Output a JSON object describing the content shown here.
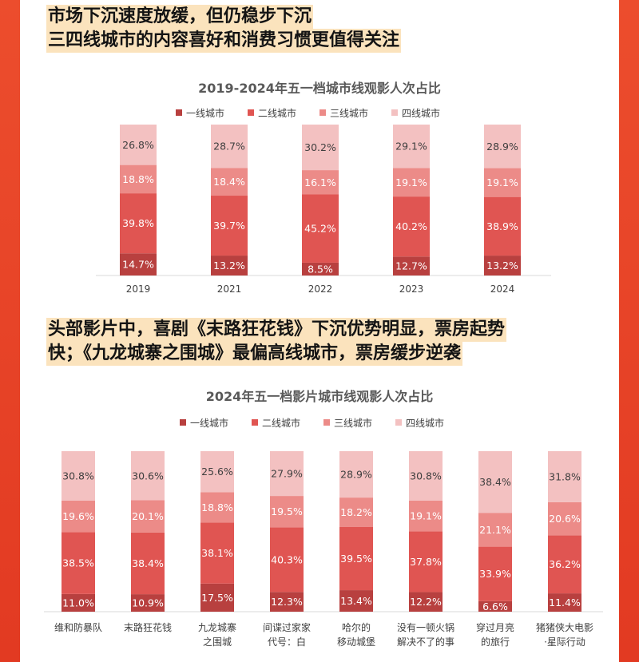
{
  "headline1": [
    "市场下沉速度放缓，但仍稳步下沉",
    "三四线城市的内容喜好和消费习惯更值得关注"
  ],
  "headline2": [
    "头部影片中，喜剧《末路狂花钱》下沉优势明显，票房起势",
    "快；《九龙城寨之围城》最偏高线城市，票房缓步逆袭"
  ],
  "colors": {
    "frame": "#e8432a",
    "highlight": "#fbe3bd",
    "tier1": "#b8403f",
    "tier2": "#e05552",
    "tier3": "#ec8b88",
    "tier4": "#f3c1c1"
  },
  "chart_data": [
    {
      "type": "bar",
      "stacked": true,
      "title": "2019-2024年五一档城市线观影人次占比",
      "legend_position": "top",
      "categories": [
        "2019",
        "2021",
        "2022",
        "2023",
        "2024"
      ],
      "category_labels": [
        [
          "2019"
        ],
        [
          "2021"
        ],
        [
          "2022"
        ],
        [
          "2023"
        ],
        [
          "2024"
        ]
      ],
      "series": [
        {
          "name": "一线城市",
          "values": [
            14.7,
            13.2,
            8.5,
            12.7,
            13.2
          ],
          "labels": [
            "14.7%",
            "13.2%",
            "8.5%",
            "12.7%",
            "13.2%"
          ]
        },
        {
          "name": "二线城市",
          "values": [
            39.8,
            39.7,
            45.2,
            40.2,
            38.9
          ],
          "labels": [
            "39.8%",
            "39.7%",
            "45.2%",
            "40.2%",
            "38.9%"
          ]
        },
        {
          "name": "三线城市",
          "values": [
            18.8,
            18.4,
            16.1,
            19.1,
            19.1
          ],
          "labels": [
            "18.8%",
            "18.4%",
            "16.1%",
            "19.1%",
            "19.1%"
          ]
        },
        {
          "name": "四线城市",
          "values": [
            26.8,
            28.7,
            30.2,
            29.1,
            28.9
          ],
          "labels": [
            "26.8%",
            "28.7%",
            "30.2%",
            "29.1%",
            "28.9%"
          ]
        }
      ]
    },
    {
      "type": "bar",
      "stacked": true,
      "title": "2024年五一档影片城市线观影人次占比",
      "legend_position": "top",
      "categories": [
        "维和防暴队",
        "末路狂花钱",
        "九龙城寨之围城",
        "间谍过家家 代号：白",
        "哈尔的移动城堡",
        "没有一顿火锅解决不了的事",
        "穿过月亮的旅行",
        "猪猪侠大电影·星际行动"
      ],
      "category_labels": [
        [
          "维和防暴队"
        ],
        [
          "末路狂花钱"
        ],
        [
          "九龙城寨",
          "之围城"
        ],
        [
          "间谍过家家",
          "代号：白"
        ],
        [
          "哈尔的",
          "移动城堡"
        ],
        [
          "没有一顿火锅",
          "解决不了的事"
        ],
        [
          "穿过月亮",
          "的旅行"
        ],
        [
          "猪猪侠大电影",
          "·星际行动"
        ]
      ],
      "series": [
        {
          "name": "一线城市",
          "values": [
            11.0,
            10.9,
            17.5,
            12.3,
            13.4,
            12.2,
            6.6,
            11.4
          ],
          "labels": [
            "11.0%",
            "10.9%",
            "17.5%",
            "12.3%",
            "13.4%",
            "12.2%",
            "6.6%",
            "11.4%"
          ]
        },
        {
          "name": "二线城市",
          "values": [
            38.5,
            38.4,
            38.1,
            40.3,
            39.5,
            37.8,
            33.9,
            36.2
          ],
          "labels": [
            "38.5%",
            "38.4%",
            "38.1%",
            "40.3%",
            "39.5%",
            "37.8%",
            "33.9%",
            "36.2%"
          ]
        },
        {
          "name": "三线城市",
          "values": [
            19.6,
            20.1,
            18.8,
            19.5,
            18.2,
            19.1,
            21.1,
            20.6
          ],
          "labels": [
            "19.6%",
            "20.1%",
            "18.8%",
            "19.5%",
            "18.2%",
            "19.1%",
            "21.1%",
            "20.6%"
          ]
        },
        {
          "name": "四线城市",
          "values": [
            30.8,
            30.6,
            25.6,
            27.9,
            28.9,
            30.8,
            38.4,
            31.8
          ],
          "labels": [
            "30.8%",
            "30.6%",
            "25.6%",
            "27.9%",
            "28.9%",
            "30.8%",
            "38.4%",
            "31.8%"
          ]
        }
      ]
    }
  ]
}
